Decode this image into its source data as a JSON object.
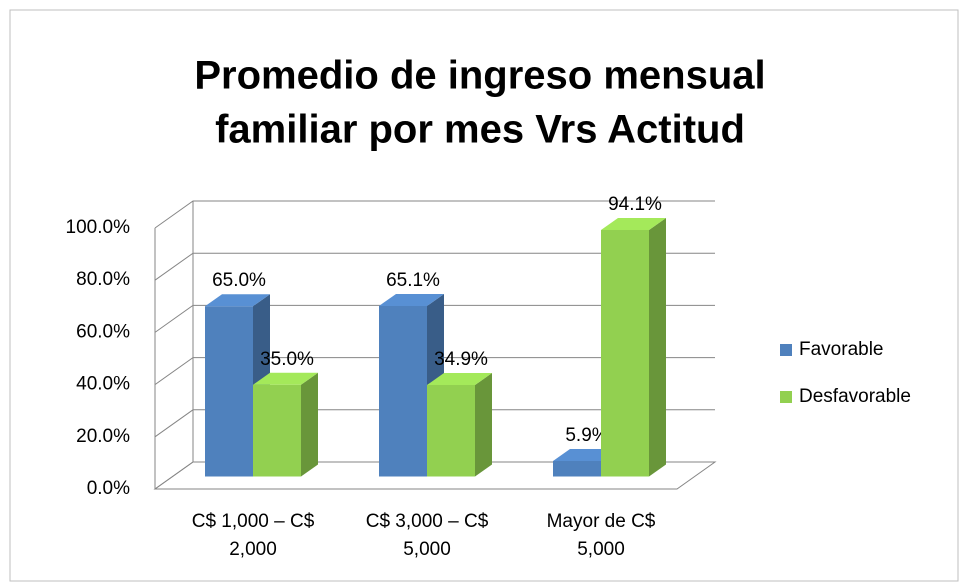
{
  "chart_data": {
    "type": "bar3d",
    "title": "Promedio de ingreso mensual familiar por mes Vrs Actitud",
    "categories": [
      "C$ 1,000 – C$ 2,000",
      "C$ 3,000 – C$ 5,000",
      "Mayor de C$ 5,000"
    ],
    "series": [
      {
        "name": "Favorable",
        "color": "#4f81bd",
        "values": [
          65.0,
          65.1,
          5.9
        ],
        "value_labels": [
          "65.0%",
          "65.1%",
          "5.9%"
        ]
      },
      {
        "name": "Desfavorable",
        "color": "#92d050",
        "values": [
          35.0,
          34.9,
          94.1
        ],
        "value_labels": [
          "35.0%",
          "34.9%",
          "94.1%"
        ]
      }
    ],
    "ylim": [
      0,
      100
    ],
    "yticks": [
      {
        "value": 0,
        "label": "0.0%"
      },
      {
        "value": 20,
        "label": "20.0%"
      },
      {
        "value": 40,
        "label": "40.0%"
      },
      {
        "value": 60,
        "label": "60.0%"
      },
      {
        "value": 80,
        "label": "80.0%"
      },
      {
        "value": 100,
        "label": "100.0%"
      }
    ],
    "grid": true,
    "legend": "right"
  }
}
